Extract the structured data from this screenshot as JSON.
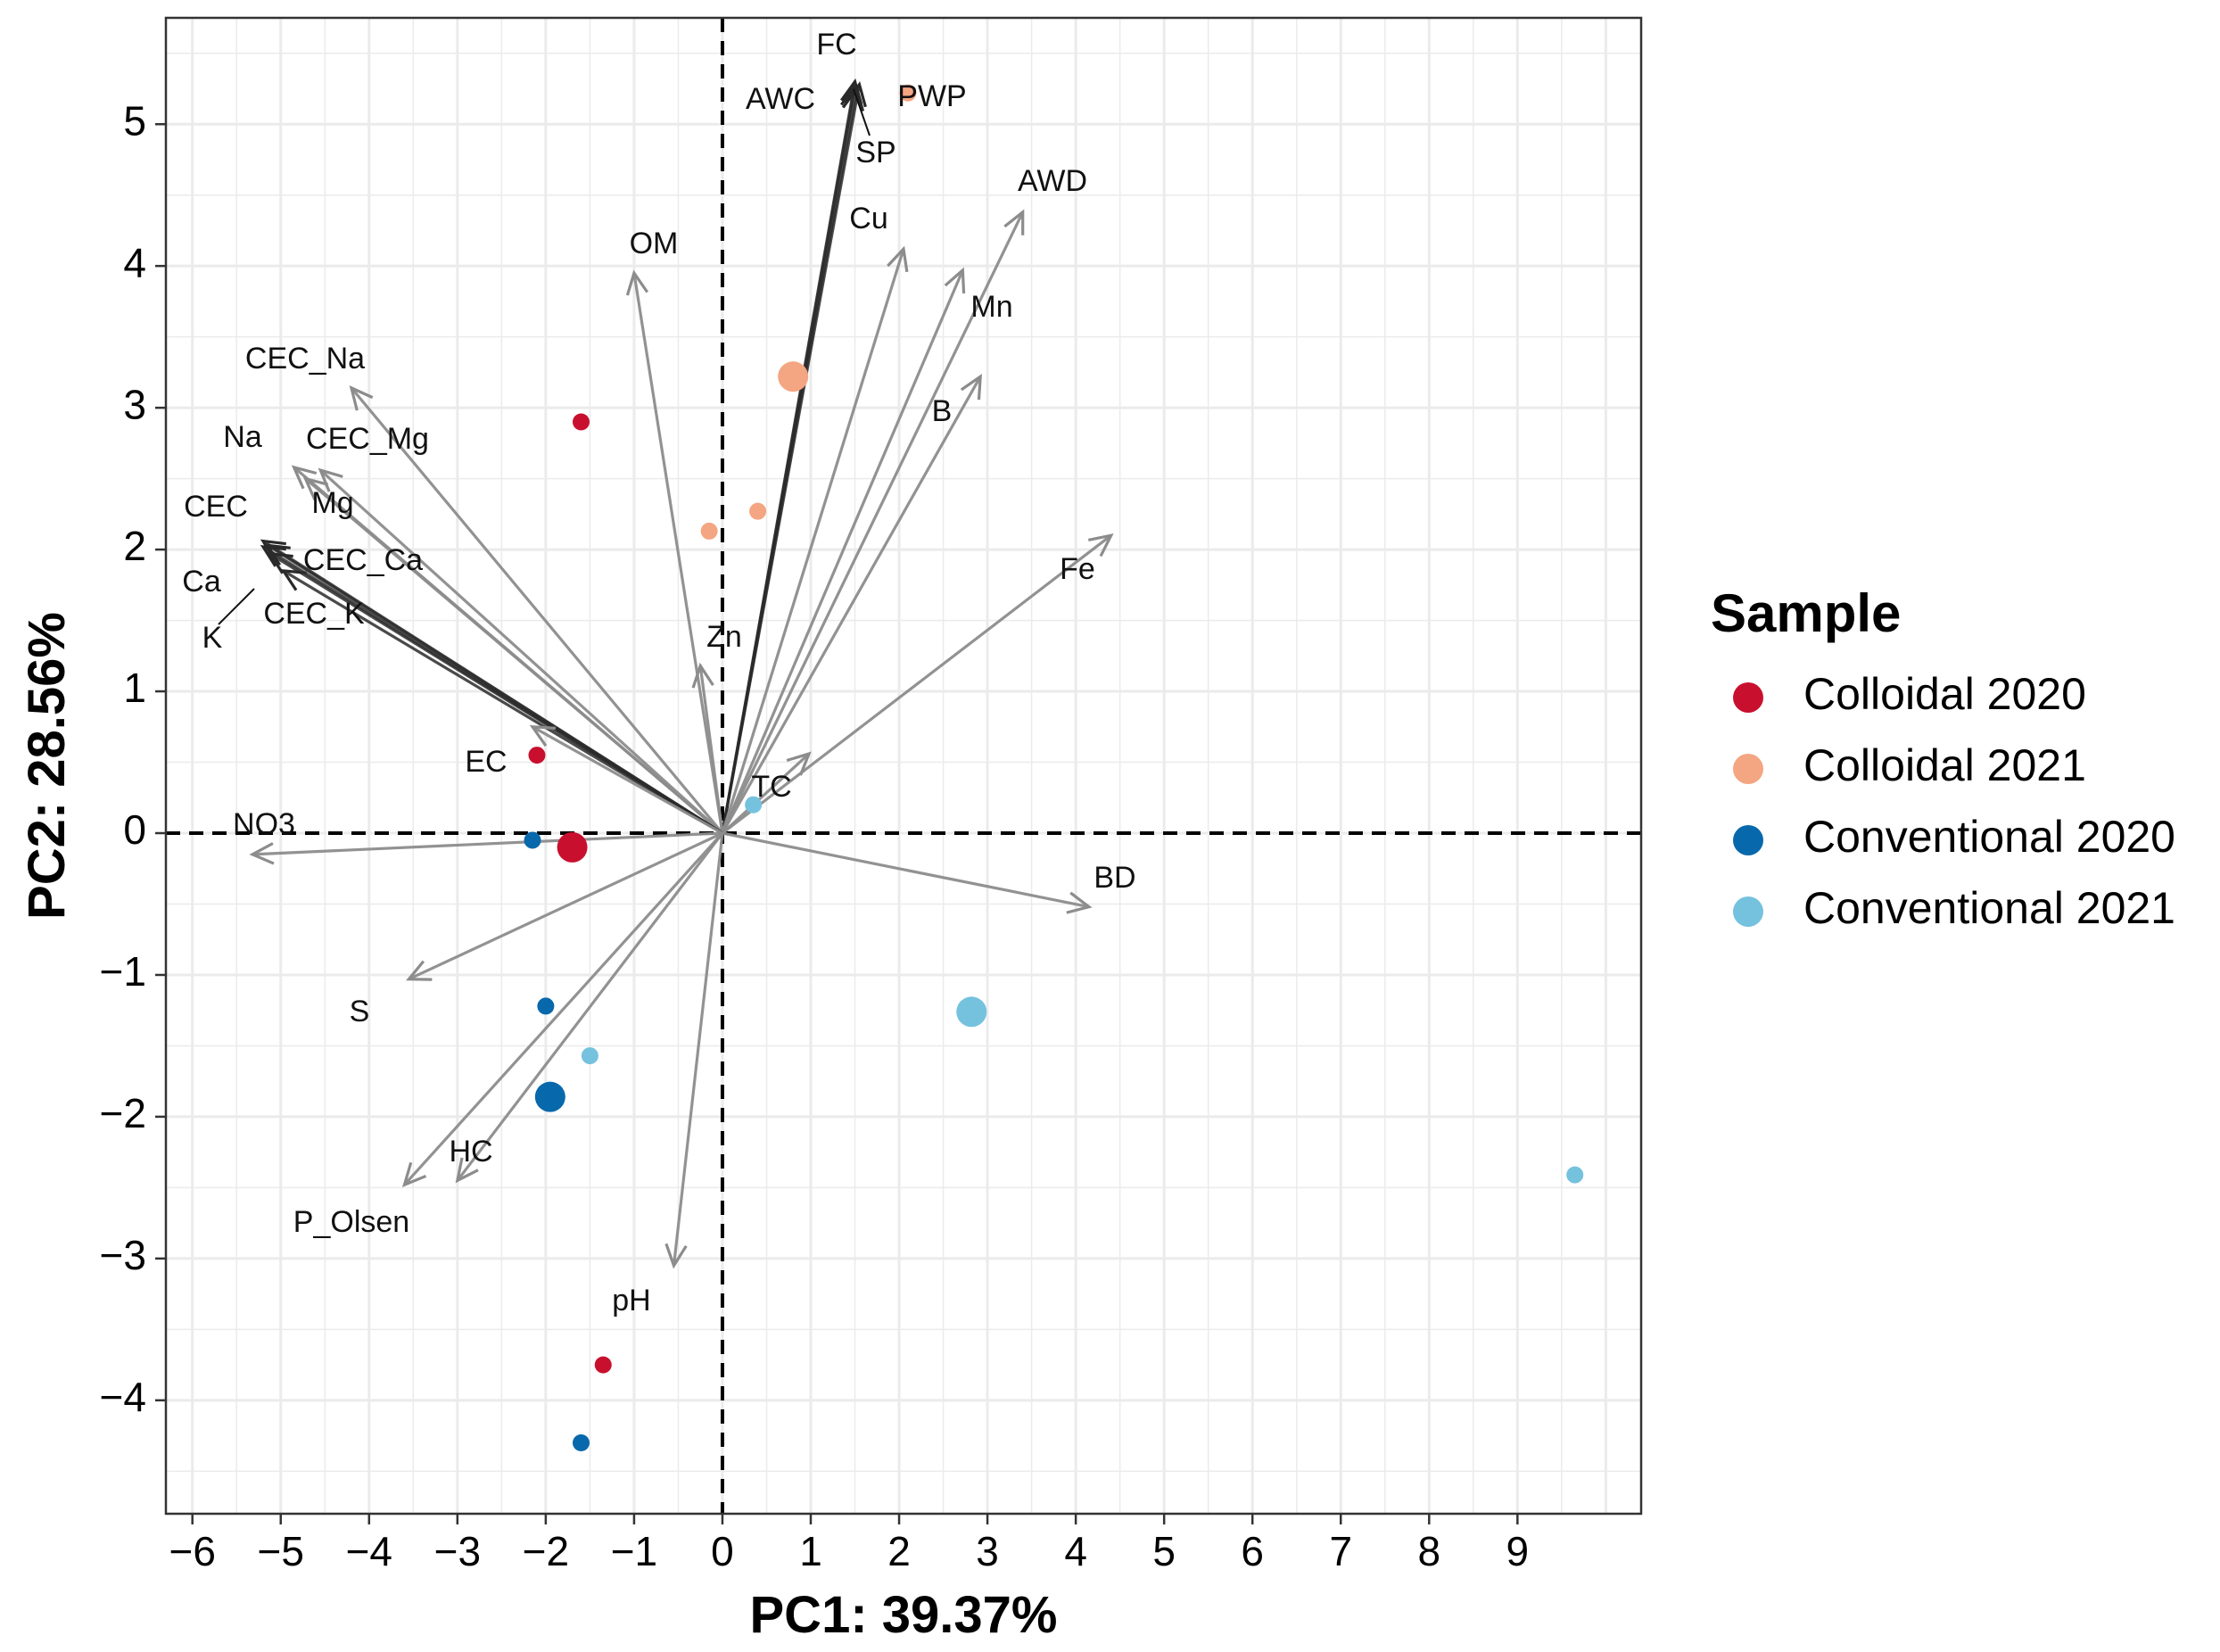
{
  "chart_data": {
    "type": "scatter",
    "subtype": "pca-biplot",
    "title": "",
    "xlabel": "PC1: 39.37%",
    "ylabel": "PC2: 28.56%",
    "xlim": [
      -6.3,
      10.4
    ],
    "ylim": [
      -4.8,
      5.75
    ],
    "x_ticks": [
      -6,
      -5,
      -4,
      -3,
      -2,
      -1,
      0,
      1,
      2,
      3,
      4,
      5,
      6,
      7,
      8,
      9
    ],
    "y_ticks": [
      -4,
      -3,
      -2,
      -1,
      0,
      1,
      2,
      3,
      4,
      5
    ],
    "grid": true,
    "reference_lines": {
      "x": 0,
      "y": 0,
      "style": "dashed"
    },
    "legend": {
      "title": "Sample",
      "position": "right",
      "entries": [
        {
          "label": "Colloidal 2020",
          "color": "#C8102E"
        },
        {
          "label": "Colloidal 2021",
          "color": "#F4A582"
        },
        {
          "label": "Conventional 2020",
          "color": "#0868AC"
        },
        {
          "label": "Conventional 2021",
          "color": "#74C2DE"
        }
      ]
    },
    "series": [
      {
        "name": "Colloidal 2020",
        "color": "#C8102E",
        "points": [
          {
            "x": -1.6,
            "y": 2.9,
            "centroid": false
          },
          {
            "x": -2.1,
            "y": 0.55,
            "centroid": false
          },
          {
            "x": -1.35,
            "y": -3.75,
            "centroid": false
          },
          {
            "x": -1.7,
            "y": -0.1,
            "centroid": true
          }
        ]
      },
      {
        "name": "Colloidal 2021",
        "color": "#F4A582",
        "points": [
          {
            "x": 2.1,
            "y": 5.22,
            "centroid": false
          },
          {
            "x": 0.4,
            "y": 2.27,
            "centroid": false
          },
          {
            "x": -0.15,
            "y": 2.13,
            "centroid": false
          },
          {
            "x": 0.8,
            "y": 3.22,
            "centroid": true
          }
        ]
      },
      {
        "name": "Conventional 2020",
        "color": "#0868AC",
        "points": [
          {
            "x": -2.15,
            "y": -0.05,
            "centroid": false
          },
          {
            "x": -2.0,
            "y": -1.22,
            "centroid": false
          },
          {
            "x": -1.6,
            "y": -4.3,
            "centroid": false
          },
          {
            "x": -1.95,
            "y": -1.86,
            "centroid": true
          }
        ]
      },
      {
        "name": "Conventional 2021",
        "color": "#74C2DE",
        "points": [
          {
            "x": 0.35,
            "y": 0.2,
            "centroid": false
          },
          {
            "x": -1.5,
            "y": -1.57,
            "centroid": false
          },
          {
            "x": 9.65,
            "y": -2.41,
            "centroid": false
          },
          {
            "x": 2.82,
            "y": -1.26,
            "centroid": true
          }
        ]
      }
    ],
    "loadings": [
      {
        "label": "FC",
        "x": 1.5,
        "y": 5.3,
        "dark": true
      },
      {
        "label": "AWC",
        "x": 1.5,
        "y": 5.27,
        "dark": true
      },
      {
        "label": "PWP",
        "x": 1.55,
        "y": 5.28,
        "dark": true
      },
      {
        "label": "SP",
        "x": 1.52,
        "y": 5.25,
        "dark": true
      },
      {
        "label": "AWD",
        "x": 3.4,
        "y": 4.38,
        "dark": false
      },
      {
        "label": "Cu",
        "x": 2.05,
        "y": 4.12,
        "dark": false
      },
      {
        "label": "Mn",
        "x": 2.72,
        "y": 3.97,
        "dark": false
      },
      {
        "label": "B",
        "x": 2.92,
        "y": 3.22,
        "dark": false
      },
      {
        "label": "Fe",
        "x": 4.4,
        "y": 2.1,
        "dark": false
      },
      {
        "label": "OM",
        "x": -1.0,
        "y": 3.95,
        "dark": false
      },
      {
        "label": "Zn",
        "x": -0.25,
        "y": 1.18,
        "dark": false
      },
      {
        "label": "TC",
        "x": 0.98,
        "y": 0.56,
        "dark": false
      },
      {
        "label": "CEC_Na",
        "x": -4.2,
        "y": 3.14,
        "dark": false
      },
      {
        "label": "Na",
        "x": -4.85,
        "y": 2.58,
        "dark": false
      },
      {
        "label": "CEC_Mg",
        "x": -4.55,
        "y": 2.56,
        "dark": false
      },
      {
        "label": "Mg",
        "x": -4.72,
        "y": 2.5,
        "dark": false
      },
      {
        "label": "CEC",
        "x": -5.2,
        "y": 2.06,
        "dark": true
      },
      {
        "label": "CEC_Ca",
        "x": -5.15,
        "y": 2.03,
        "dark": true
      },
      {
        "label": "Ca",
        "x": -5.2,
        "y": 2.02,
        "dark": true
      },
      {
        "label": "K",
        "x": -5.12,
        "y": 1.97,
        "dark": true
      },
      {
        "label": "CEC_K",
        "x": -4.97,
        "y": 1.85,
        "dark": true
      },
      {
        "label": "EC",
        "x": -2.15,
        "y": 0.75,
        "dark": false
      },
      {
        "label": "NO3",
        "x": -5.32,
        "y": -0.15,
        "dark": false
      },
      {
        "label": "BD",
        "x": 4.15,
        "y": -0.52,
        "dark": false
      },
      {
        "label": "S",
        "x": -3.55,
        "y": -1.03,
        "dark": false
      },
      {
        "label": "HC",
        "x": -3.0,
        "y": -2.45,
        "dark": false
      },
      {
        "label": "P_Olsen",
        "x": -3.6,
        "y": -2.48,
        "dark": false
      },
      {
        "label": "pH",
        "x": -0.55,
        "y": -3.05,
        "dark": false
      }
    ]
  }
}
